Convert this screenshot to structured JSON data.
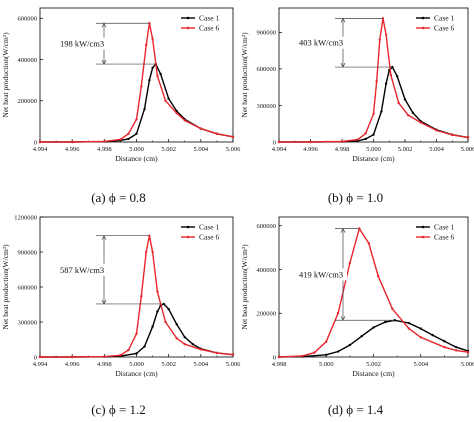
{
  "chart_data": [
    {
      "type": "line",
      "caption": "(a) ϕ = 0.8",
      "xlabel": "Distance (cm)",
      "ylabel": "Net heat production(W/cm³)",
      "xlim": [
        4.994,
        5.006
      ],
      "ylim": [
        0,
        650000
      ],
      "xticks": [
        "4.994",
        "4.996",
        "4.998",
        "5.000",
        "5.002",
        "5.004",
        "5.006"
      ],
      "yticks": [
        0,
        200000,
        400000,
        600000
      ],
      "ytick_labels": [
        "0",
        "200000",
        "400000",
        "600000"
      ],
      "legend": "top-right",
      "annotation": "198 kW/cm3",
      "series": [
        {
          "name": "Case 1",
          "color": "#000000",
          "peak_x": 5.0012,
          "x": [
            4.994,
            4.996,
            4.998,
            4.999,
            4.9995,
            5.0,
            5.0005,
            5.0008,
            5.001,
            5.0012,
            5.0015,
            5.002,
            5.0025,
            5.003,
            5.004,
            5.005,
            5.006
          ],
          "values": [
            0,
            0,
            2000,
            8000,
            15000,
            40000,
            160000,
            300000,
            360000,
            378000,
            330000,
            210000,
            150000,
            110000,
            65000,
            40000,
            25000
          ]
        },
        {
          "name": "Case 6",
          "color": "#e8262d",
          "peak_x": 5.0008,
          "x": [
            4.994,
            4.996,
            4.998,
            4.999,
            4.9995,
            5.0,
            5.0003,
            5.0006,
            5.0008,
            5.001,
            5.0013,
            5.0018,
            5.0025,
            5.003,
            5.004,
            5.005,
            5.006
          ],
          "values": [
            0,
            0,
            3000,
            12000,
            40000,
            110000,
            270000,
            470000,
            576000,
            500000,
            320000,
            200000,
            140000,
            105000,
            65000,
            40000,
            25000
          ]
        }
      ]
    },
    {
      "type": "line",
      "caption": "(b) ϕ = 1.0",
      "xlabel": "Distance (cm)",
      "ylabel": "Net heat production(W/cm³)",
      "xlim": [
        4.994,
        5.006
      ],
      "ylim": [
        0,
        1100000
      ],
      "xticks": [
        "4.994",
        "4.996",
        "4.998",
        "5.000",
        "5.002",
        "5.004",
        "5.006"
      ],
      "yticks": [
        0,
        300000,
        600000,
        900000
      ],
      "ytick_labels": [
        "0",
        "300000",
        "600000",
        "900000"
      ],
      "legend": "top-right",
      "annotation": "403 kW/cm3",
      "series": [
        {
          "name": "Case 1",
          "color": "#000000",
          "peak_x": 5.0012,
          "x": [
            4.994,
            4.996,
            4.998,
            4.999,
            4.9995,
            5.0,
            5.0005,
            5.0008,
            5.001,
            5.0012,
            5.0015,
            5.002,
            5.0025,
            5.003,
            5.004,
            5.005,
            5.006
          ],
          "values": [
            0,
            0,
            2000,
            10000,
            25000,
            60000,
            250000,
            480000,
            590000,
            615000,
            540000,
            350000,
            240000,
            170000,
            100000,
            60000,
            38000
          ]
        },
        {
          "name": "Case 6",
          "color": "#e8262d",
          "peak_x": 5.0006,
          "x": [
            4.994,
            4.996,
            4.998,
            4.999,
            4.9995,
            5.0,
            5.0002,
            5.0004,
            5.0006,
            5.0008,
            5.0011,
            5.0016,
            5.0022,
            5.003,
            5.004,
            5.005,
            5.006
          ],
          "values": [
            0,
            0,
            4000,
            20000,
            70000,
            230000,
            500000,
            840000,
            1015000,
            880000,
            550000,
            320000,
            220000,
            160000,
            95000,
            58000,
            36000
          ]
        }
      ]
    },
    {
      "type": "line",
      "caption": "(c) ϕ = 1.2",
      "xlabel": "Distance (cm)",
      "ylabel": "Net heat production(W/cm³)",
      "xlim": [
        4.994,
        5.006
      ],
      "ylim": [
        0,
        1200000
      ],
      "xticks": [
        "4.994",
        "4.996",
        "4.998",
        "5.000",
        "5.002",
        "5.004",
        "5.006"
      ],
      "yticks": [
        0,
        300000,
        600000,
        900000,
        1200000
      ],
      "ytick_labels": [
        "0",
        "300000",
        "600000",
        "900000",
        "1200000"
      ],
      "legend": "top-right",
      "annotation": "587 kW/cm3",
      "series": [
        {
          "name": "Case 1",
          "color": "#000000",
          "peak_x": 5.0017,
          "x": [
            4.994,
            4.996,
            4.998,
            4.999,
            5.0,
            5.0005,
            5.001,
            5.0013,
            5.0015,
            5.0017,
            5.002,
            5.0025,
            5.003,
            5.0035,
            5.004,
            5.005,
            5.006
          ],
          "values": [
            0,
            0,
            2000,
            8000,
            30000,
            90000,
            260000,
            390000,
            440000,
            455000,
            410000,
            280000,
            170000,
            110000,
            70000,
            35000,
            20000
          ]
        },
        {
          "name": "Case 6",
          "color": "#e8262d",
          "peak_x": 5.0008,
          "x": [
            4.994,
            4.996,
            4.998,
            4.999,
            4.9995,
            5.0,
            5.0003,
            5.0006,
            5.0008,
            5.001,
            5.0013,
            5.0018,
            5.0025,
            5.003,
            5.004,
            5.005,
            5.006
          ],
          "values": [
            0,
            0,
            3000,
            15000,
            60000,
            200000,
            520000,
            900000,
            1040000,
            900000,
            560000,
            300000,
            160000,
            110000,
            65000,
            35000,
            20000
          ]
        }
      ]
    },
    {
      "type": "line",
      "caption": "(d) ϕ = 1.4",
      "xlabel": "Distance (cm)",
      "ylabel": "Net heat production(W/cm³)",
      "xlim": [
        4.998,
        5.006
      ],
      "ylim": [
        0,
        640000
      ],
      "xticks": [
        "4.998",
        "5.000",
        "5.002",
        "5.004",
        "5.006"
      ],
      "yticks": [
        0,
        200000,
        400000,
        600000
      ],
      "ytick_labels": [
        "0",
        "200000",
        "400000",
        "600000"
      ],
      "legend": "top-right",
      "annotation": "419 kW/cm3",
      "series": [
        {
          "name": "Case 1",
          "color": "#000000",
          "peak_x": 5.0029,
          "x": [
            4.998,
            4.999,
            5.0,
            5.0005,
            5.001,
            5.0015,
            5.002,
            5.0025,
            5.0029,
            5.0035,
            5.004,
            5.0045,
            5.005,
            5.0055,
            5.006
          ],
          "values": [
            0,
            2000,
            10000,
            25000,
            55000,
            95000,
            135000,
            160000,
            168000,
            155000,
            130000,
            100000,
            72000,
            45000,
            28000
          ]
        },
        {
          "name": "Case 6",
          "color": "#e8262d",
          "peak_x": 5.0014,
          "x": [
            4.998,
            4.999,
            4.9995,
            5.0,
            5.0005,
            5.001,
            5.0014,
            5.0018,
            5.0022,
            5.0028,
            5.0035,
            5.004,
            5.005,
            5.0055,
            5.006
          ],
          "values": [
            0,
            5000,
            20000,
            70000,
            200000,
            430000,
            587000,
            520000,
            370000,
            220000,
            130000,
            90000,
            45000,
            30000,
            22000
          ]
        }
      ]
    }
  ]
}
